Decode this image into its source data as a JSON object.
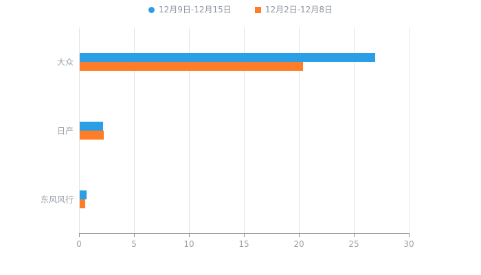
{
  "chart_data": {
    "type": "bar",
    "orientation": "horizontal",
    "title": "",
    "xlabel": "",
    "ylabel": "",
    "categories": [
      "大众",
      "日产",
      "东风风行"
    ],
    "series": [
      {
        "name": "12月9日-12月15日",
        "color": "#2b9fe6",
        "marker": "circle",
        "values": [
          26.9,
          2.1,
          0.6
        ]
      },
      {
        "name": "12月2日-12月8日",
        "color": "#ff7d26",
        "marker": "square",
        "values": [
          20.3,
          2.2,
          0.5
        ]
      }
    ],
    "xlim": [
      0,
      30
    ],
    "xticks": [
      0,
      5,
      10,
      15,
      20,
      25,
      30
    ],
    "grid": true,
    "legend_position": "top",
    "axis_text_color": "#9aa0a8",
    "gridline_color": "#e5e5e5"
  }
}
